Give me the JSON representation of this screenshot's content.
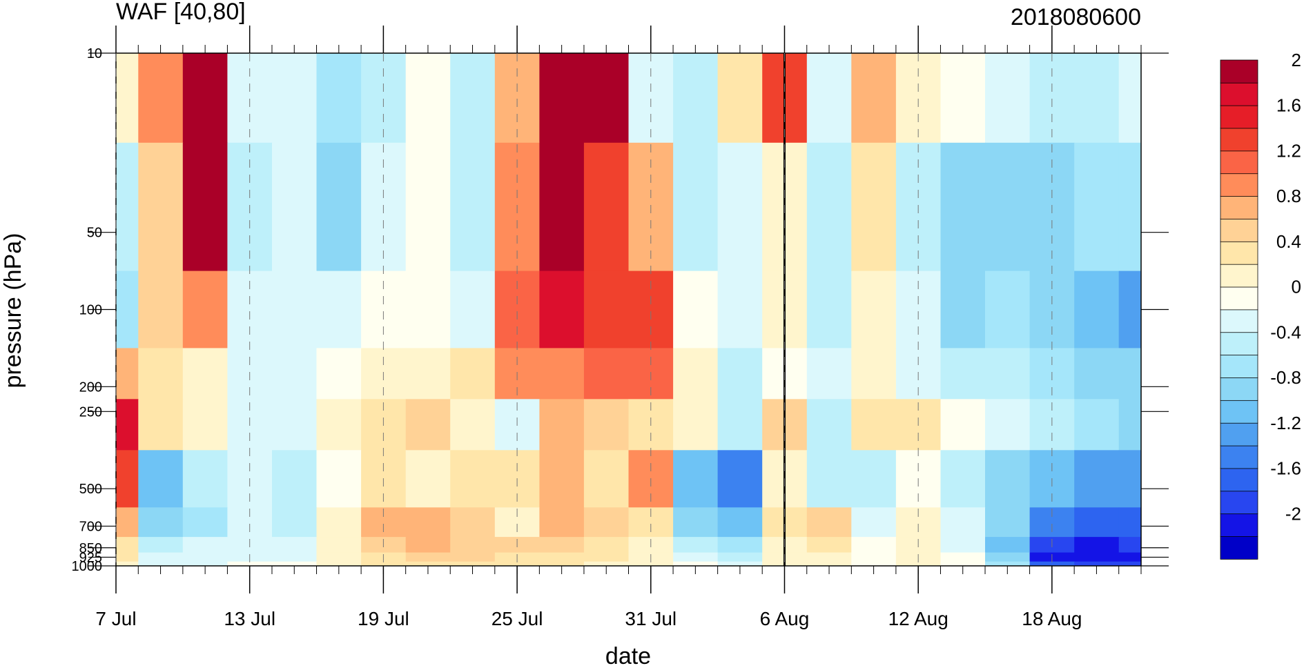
{
  "chart_data": {
    "type": "heatmap",
    "title_left": "WAF [40,80]",
    "title_right": "2018080600",
    "xlabel": "date",
    "ylabel": "pressure (hPa)",
    "y_scale": "log",
    "y_inverted": true,
    "ylim": [
      1000,
      10
    ],
    "x_range": [
      "2018-07-07",
      "2018-08-22"
    ],
    "x_ticks": [
      {
        "date": "2018-07-07",
        "label": "7 Jul"
      },
      {
        "date": "2018-07-13",
        "label": "13 Jul"
      },
      {
        "date": "2018-07-19",
        "label": "19 Jul"
      },
      {
        "date": "2018-07-25",
        "label": "25 Jul"
      },
      {
        "date": "2018-07-31",
        "label": "31 Jul"
      },
      {
        "date": "2018-08-06",
        "label": "6 Aug"
      },
      {
        "date": "2018-08-12",
        "label": "12 Aug"
      },
      {
        "date": "2018-08-18",
        "label": "18 Aug"
      }
    ],
    "y_ticks": [
      {
        "value": 10,
        "label": "10"
      },
      {
        "value": 50,
        "label": "50"
      },
      {
        "value": 100,
        "label": "100"
      },
      {
        "value": 200,
        "label": "200"
      },
      {
        "value": 250,
        "label": "250"
      },
      {
        "value": 500,
        "label": "500"
      },
      {
        "value": 700,
        "label": "700"
      },
      {
        "value": 850,
        "label": "850"
      },
      {
        "value": 925,
        "label": "925"
      },
      {
        "value": 1000,
        "label": "1000"
      }
    ],
    "highlight_date": "2018-08-06",
    "colorbar": {
      "levels": [
        -2.2,
        -2,
        -1.8,
        -1.6,
        -1.4,
        -1.2,
        -1,
        -0.8,
        -0.6,
        -0.4,
        -0.2,
        0,
        0.2,
        0.4,
        0.6,
        0.8,
        1,
        1.2,
        1.4,
        1.6,
        1.8,
        2
      ],
      "colors": [
        "#0000c8",
        "#1414e6",
        "#2846f0",
        "#2d64f0",
        "#3c82f0",
        "#50a0f0",
        "#6ec3f5",
        "#8cd7f5",
        "#a5e6fa",
        "#bef0fa",
        "#dcf8fc",
        "#fffff0",
        "#fff5cd",
        "#ffe6aa",
        "#ffd296",
        "#ffb478",
        "#ff8c5a",
        "#fa6446",
        "#f0412d",
        "#e61e28",
        "#dc0f2d",
        "#aa0028"
      ],
      "tick_labels": [
        {
          "value": 2,
          "label": "2"
        },
        {
          "value": 1.6,
          "label": "1.6"
        },
        {
          "value": 1.2,
          "label": "1.2"
        },
        {
          "value": 0.8,
          "label": "0.8"
        },
        {
          "value": 0.4,
          "label": "0.4"
        },
        {
          "value": 0,
          "label": "0"
        },
        {
          "value": -0.4,
          "label": "-0.4"
        },
        {
          "value": -0.8,
          "label": "-0.8"
        },
        {
          "value": -1.2,
          "label": "-1.2"
        },
        {
          "value": -1.6,
          "label": "-1.6"
        },
        {
          "value": -2,
          "label": "-2"
        }
      ]
    },
    "levels_hPa": [
      10,
      50,
      100,
      200,
      250,
      500,
      700,
      850,
      925,
      1000
    ],
    "days": [
      "2018-07-07",
      "2018-07-09",
      "2018-07-11",
      "2018-07-13",
      "2018-07-15",
      "2018-07-17",
      "2018-07-19",
      "2018-07-21",
      "2018-07-23",
      "2018-07-25",
      "2018-07-27",
      "2018-07-29",
      "2018-07-31",
      "2018-08-02",
      "2018-08-04",
      "2018-08-06",
      "2018-08-08",
      "2018-08-10",
      "2018-08-12",
      "2018-08-14",
      "2018-08-16",
      "2018-08-18",
      "2018-08-20",
      "2018-08-22"
    ],
    "values": [
      [
        0.0,
        0.9,
        1.8,
        -0.4,
        -0.4,
        -0.7,
        -0.5,
        -0.2,
        -0.5,
        0.6,
        2.4,
        2.4,
        -0.3,
        -0.6,
        0.2,
        1.2,
        -0.3,
        0.6,
        0.1,
        -0.2,
        -0.4,
        -0.5,
        -0.5,
        -0.4
      ],
      [
        -0.6,
        0.4,
        2.2,
        -0.5,
        -0.3,
        -0.9,
        -0.4,
        -0.1,
        -0.5,
        0.8,
        2.3,
        1.3,
        0.6,
        -0.6,
        -0.4,
        0.0,
        -0.6,
        0.3,
        -0.5,
        -1.0,
        -0.9,
        -0.9,
        -0.8,
        -0.7
      ],
      [
        -0.8,
        0.4,
        0.9,
        -0.4,
        -0.3,
        -0.4,
        -0.1,
        -0.2,
        -0.3,
        1.0,
        1.7,
        1.3,
        1.2,
        -0.2,
        -0.4,
        0.0,
        -0.5,
        0.0,
        -0.3,
        -0.9,
        -0.8,
        -0.9,
        -1.1,
        -1.3
      ],
      [
        0.6,
        0.3,
        0.1,
        -0.4,
        -0.3,
        -0.2,
        0.0,
        0.1,
        0.3,
        0.8,
        0.8,
        1.0,
        1.1,
        0.1,
        -0.5,
        -0.1,
        -0.4,
        0.0,
        -0.3,
        -0.6,
        -0.6,
        -0.8,
        -0.9,
        -1.0
      ],
      [
        1.6,
        0.3,
        0.0,
        -0.4,
        -0.3,
        0.0,
        0.3,
        0.4,
        0.1,
        -0.3,
        0.6,
        0.4,
        0.3,
        0.0,
        -0.5,
        0.5,
        -0.5,
        0.2,
        0.2,
        -0.2,
        -0.4,
        -0.6,
        -0.7,
        -0.9
      ],
      [
        1.2,
        -1.2,
        -0.6,
        -0.3,
        -0.5,
        -0.1,
        0.3,
        0.1,
        0.3,
        0.2,
        0.6,
        0.3,
        0.8,
        -1.1,
        -1.6,
        0.0,
        -0.6,
        -0.6,
        -0.2,
        -0.6,
        -1.0,
        -1.2,
        -1.3,
        -1.4
      ],
      [
        0.6,
        -0.9,
        -0.7,
        -0.3,
        -0.6,
        0.0,
        0.6,
        0.7,
        0.4,
        0.1,
        0.6,
        0.5,
        0.3,
        -0.9,
        -1.2,
        0.2,
        0.4,
        -0.3,
        0.1,
        -0.4,
        -1.0,
        -1.6,
        -1.7,
        -1.8
      ],
      [
        0.3,
        -0.5,
        -0.4,
        -0.3,
        -0.4,
        0.1,
        0.5,
        0.6,
        0.5,
        0.4,
        0.5,
        0.3,
        0.1,
        -0.5,
        -0.8,
        0.1,
        0.2,
        -0.1,
        0.0,
        -0.3,
        -1.2,
        -2.0,
        -2.1,
        -2.0
      ],
      [
        0.2,
        -0.4,
        -0.3,
        -0.3,
        -0.3,
        0.1,
        0.3,
        0.5,
        0.4,
        0.3,
        0.3,
        0.2,
        0.0,
        -0.3,
        -0.5,
        0.0,
        0.1,
        -0.1,
        0.0,
        -0.2,
        -1.0,
        -2.1,
        -2.2,
        -2.1
      ],
      [
        0.1,
        -0.3,
        -0.3,
        -0.2,
        -0.2,
        0.0,
        0.2,
        0.3,
        0.3,
        0.2,
        0.2,
        0.1,
        0.0,
        -0.2,
        -0.3,
        0.0,
        0.0,
        -0.1,
        0.0,
        -0.1,
        -0.8,
        -1.8,
        -2.0,
        -1.9
      ]
    ]
  }
}
